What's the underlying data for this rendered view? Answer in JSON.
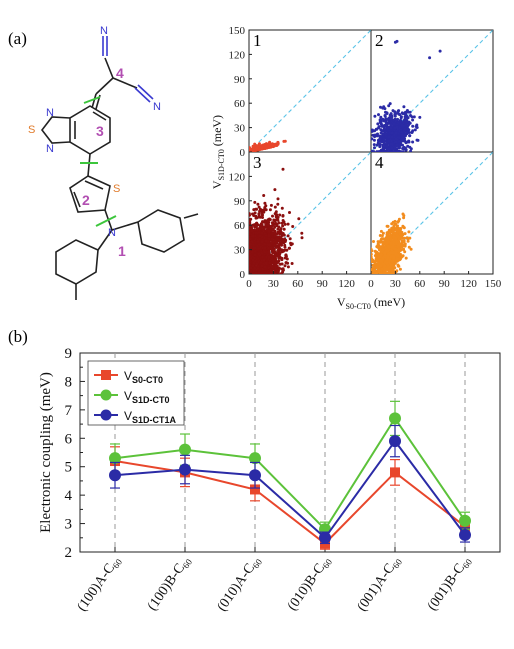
{
  "panel_a": {
    "label": "(a)",
    "molecule": {
      "segment_numbers": [
        "1",
        "2",
        "3",
        "4"
      ],
      "atoms": [
        {
          "symbol": "N",
          "role": "cyano-top"
        },
        {
          "symbol": "N",
          "role": "cyano-right"
        },
        {
          "symbol": "S",
          "role": "thiadiazole"
        },
        {
          "symbol": "N",
          "role": "thiadiazole-left"
        },
        {
          "symbol": "N",
          "role": "thiadiazole-right"
        },
        {
          "symbol": "S",
          "role": "thiophene"
        },
        {
          "symbol": "N",
          "role": "amine"
        }
      ],
      "colors": {
        "nitrogen": "#3a3ad0",
        "sulfur": "#e07a2a",
        "bond": "#222222",
        "cut": "#3cc63c",
        "number": "#b24fb2"
      }
    }
  },
  "panel_b": {
    "label": "(b)"
  },
  "chart_data": [
    {
      "type": "scatter",
      "title": "",
      "xlabel": "V",
      "xlabel_sub": "S0-CT0",
      "xlabel_unit": " (meV)",
      "ylabel": "V",
      "ylabel_sub": "S1D-CT0",
      "ylabel_unit": " (meV)",
      "xlim": [
        0,
        150
      ],
      "ylim": [
        0,
        150
      ],
      "xticks": [
        "0",
        "30",
        "60",
        "90",
        "120",
        "150"
      ],
      "yticks": [
        "0",
        "30",
        "60",
        "90",
        "120",
        "150"
      ],
      "inner_xticks": [
        "0",
        "30",
        "60",
        "90",
        "120"
      ],
      "inner_yticks": [
        "0",
        "30",
        "60",
        "90",
        "120"
      ],
      "grid": false,
      "diagonal": {
        "from": [
          0,
          0
        ],
        "to": [
          150,
          150
        ],
        "color": "#5bc4e8",
        "style": "dashed"
      },
      "subplots": [
        {
          "number": "1",
          "color": "#e8472c",
          "x_range": [
            0,
            45
          ],
          "y_range": [
            0,
            15
          ],
          "extent_note": "points concentrated along x, max ~65"
        },
        {
          "number": "2",
          "color": "#2b2ba6",
          "x_range": [
            0,
            65
          ],
          "y_range": [
            0,
            70
          ],
          "outliers": [
            [
              30,
              135
            ],
            [
              32,
              136
            ],
            [
              72,
              116
            ],
            [
              85,
              124
            ]
          ]
        },
        {
          "number": "3",
          "color": "#8b0f0f",
          "x_range": [
            0,
            80
          ],
          "y_range": [
            0,
            138
          ]
        },
        {
          "number": "4",
          "color": "#f28c1e",
          "x_range": [
            0,
            55
          ],
          "y_range": [
            0,
            100
          ]
        }
      ]
    },
    {
      "type": "line",
      "title": "",
      "xlabel": "",
      "ylabel": "Electronic coupling (meV)",
      "ylim": [
        2,
        9
      ],
      "yticks": [
        "2",
        "3",
        "4",
        "5",
        "6",
        "7",
        "8",
        "9"
      ],
      "categories": [
        {
          "main": "(100)A-C",
          "sub": "60"
        },
        {
          "main": "(100)B-C",
          "sub": "60"
        },
        {
          "main": "(010)A-C",
          "sub": "60"
        },
        {
          "main": "(010)B-C",
          "sub": "60"
        },
        {
          "main": "(001)A-C",
          "sub": "60"
        },
        {
          "main": "(001)B-C",
          "sub": "60"
        }
      ],
      "grid": false,
      "category_guides": "dashed vertical",
      "legend_placement": "top-left",
      "series": [
        {
          "name": "V",
          "name_sub": "S0-CT0",
          "marker": "square",
          "color": "#e8472c",
          "values": [
            5.2,
            4.8,
            4.2,
            2.3,
            4.8,
            2.9
          ],
          "errors": [
            0.5,
            0.5,
            0.4,
            0.2,
            0.45,
            0.3
          ]
        },
        {
          "name": "V",
          "name_sub": "S1D-CT0",
          "marker": "circle",
          "color": "#5cc23a",
          "values": [
            5.3,
            5.6,
            5.3,
            2.8,
            6.7,
            3.1
          ],
          "errors": [
            0.5,
            0.55,
            0.5,
            0.25,
            0.6,
            0.3
          ]
        },
        {
          "name": "V",
          "name_sub": "S1D-CT1A",
          "marker": "circle",
          "color": "#2b2ba6",
          "values": [
            4.7,
            4.9,
            4.7,
            2.5,
            5.9,
            2.6
          ],
          "errors": [
            0.45,
            0.5,
            0.45,
            0.2,
            0.55,
            0.25
          ]
        }
      ]
    }
  ]
}
